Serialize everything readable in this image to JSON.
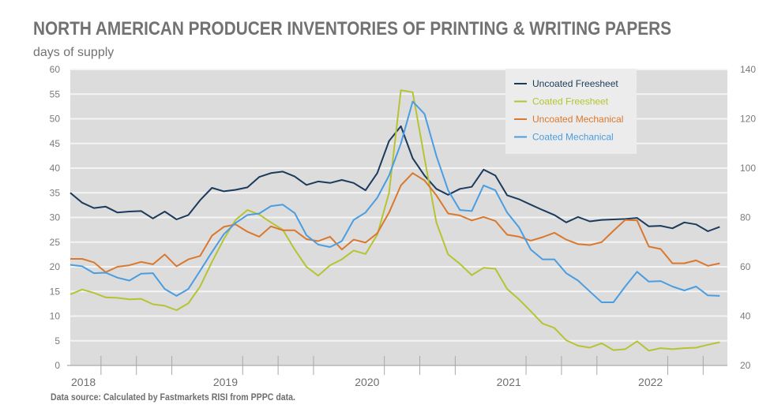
{
  "chart_data": {
    "type": "line",
    "title": "NORTH AMERICAN PRODUCER INVENTORIES OF PRINTING & WRITING PAPERS",
    "subtitle": "days of supply",
    "source": "Data source: Calculated by Fastmarkets RISI from PPPC data.",
    "x_frequency": "monthly",
    "x_start": "2018-01",
    "x_tick_labels": [
      "2018",
      "2019",
      "2020",
      "2021",
      "2022"
    ],
    "ylim": [
      0,
      60
    ],
    "y_ticks": [
      0,
      5,
      10,
      15,
      20,
      25,
      30,
      35,
      40,
      45,
      50,
      55,
      60
    ],
    "y2lim": [
      20,
      140
    ],
    "y2_ticks": [
      20,
      40,
      60,
      80,
      100,
      120,
      140
    ],
    "grid": true,
    "legend_position": "top-right",
    "series": [
      {
        "name": "Uncoated Freesheet",
        "color": "#1b3a5c",
        "values": [
          35,
          33,
          31.9,
          32.2,
          31,
          31.2,
          31.3,
          29.8,
          31.2,
          29.6,
          30.5,
          33.5,
          36,
          35.3,
          35.6,
          36.1,
          38.2,
          39,
          39.3,
          38.3,
          36.6,
          37.3,
          37,
          37.6,
          37,
          35.5,
          39,
          45.5,
          48.5,
          42,
          38.5,
          35.8,
          34.6,
          35.8,
          36.2,
          39.7,
          38.5,
          34.5,
          33.7,
          32.6,
          31.5,
          30.5,
          29,
          30.1,
          29.2,
          29.5,
          29.6,
          29.7,
          29.9,
          28.2,
          28.3,
          27.8,
          29,
          28.6,
          27.2,
          28.1
        ]
      },
      {
        "name": "Coated Freesheet",
        "color": "#b5c432",
        "values": [
          14.4,
          15.4,
          14.7,
          13.8,
          13.7,
          13.4,
          13.5,
          12.4,
          12.1,
          11.2,
          12.6,
          16,
          21,
          25.6,
          29.5,
          31.5,
          30.6,
          29,
          27.5,
          23.5,
          20,
          18.2,
          20.3,
          21.5,
          23.3,
          22.6,
          26.5,
          35,
          55.8,
          55.4,
          42,
          29,
          22.5,
          20.6,
          18.3,
          19.8,
          19.6,
          15.5,
          13.4,
          11,
          8.5,
          7.6,
          5.1,
          4,
          3.6,
          4.5,
          3.1,
          3.3,
          4.9,
          3,
          3.5,
          3.3,
          3.5,
          3.6,
          4.2,
          4.7
        ]
      },
      {
        "name": "Uncoated Mechanical",
        "color": "#d9782e",
        "values": [
          21.6,
          21.6,
          20.9,
          18.9,
          20,
          20.3,
          21,
          20.5,
          22.5,
          20.1,
          21.5,
          22.2,
          26.3,
          28.1,
          28.6,
          27.1,
          26.1,
          28.2,
          27.4,
          27.4,
          25.6,
          25.2,
          26.1,
          23.5,
          25.5,
          24.9,
          26.8,
          31,
          36.5,
          39,
          37.5,
          34.5,
          30.8,
          30.4,
          29.4,
          30.1,
          29.3,
          26.5,
          26.1,
          25.3,
          26,
          26.9,
          25.5,
          24.6,
          24.4,
          25,
          27.3,
          29.5,
          29.4,
          24.1,
          23.6,
          20.7,
          20.7,
          21.3,
          20.2,
          20.7
        ]
      },
      {
        "name": "Coated Mechanical",
        "color": "#4a9de0",
        "values": [
          20.4,
          20.1,
          18.7,
          18.8,
          17.8,
          17.2,
          18.6,
          18.7,
          15.5,
          14.1,
          15.5,
          19.2,
          23,
          26.6,
          28.9,
          30.5,
          30.8,
          32.3,
          32.6,
          30.9,
          26.4,
          24.5,
          24,
          25.2,
          29.5,
          31,
          34,
          38.5,
          45,
          53.5,
          51,
          42.5,
          35.5,
          31.5,
          31.3,
          36.5,
          35.5,
          31,
          28,
          23.5,
          21.5,
          21.5,
          18.7,
          17.2,
          15,
          12.8,
          12.8,
          16,
          19,
          17,
          17.1,
          16,
          15.2,
          16,
          14.2,
          14.1
        ]
      }
    ]
  }
}
